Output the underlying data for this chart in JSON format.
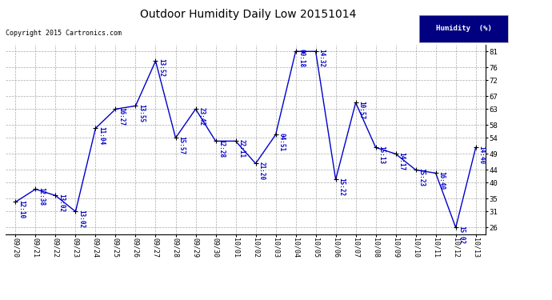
{
  "title": "Outdoor Humidity Daily Low 20151014",
  "copyright": "Copyright 2015 Cartronics.com",
  "legend_label": "Humidity  (%)",
  "dates": [
    "09/20",
    "09/21",
    "09/22",
    "09/23",
    "09/24",
    "09/25",
    "09/26",
    "09/27",
    "09/28",
    "09/29",
    "09/30",
    "10/01",
    "10/02",
    "10/03",
    "10/04",
    "10/05",
    "10/06",
    "10/07",
    "10/08",
    "10/09",
    "10/10",
    "10/11",
    "10/12",
    "10/13"
  ],
  "values": [
    34,
    38,
    36,
    31,
    57,
    63,
    64,
    78,
    54,
    63,
    53,
    53,
    46,
    55,
    81,
    81,
    41,
    65,
    51,
    49,
    44,
    43,
    26,
    51
  ],
  "labels": [
    "12:10",
    "12:38",
    "13:02",
    "13:02",
    "11:04",
    "16:27",
    "13:55",
    "13:52",
    "15:57",
    "23:42",
    "12:28",
    "22:11",
    "21:20",
    "04:51",
    "00:18",
    "14:32",
    "15:22",
    "10:57",
    "15:13",
    "14:17",
    "15:23",
    "16:40",
    "15:02",
    "14:40"
  ],
  "line_color": "#0000cc",
  "marker_color": "#000000",
  "bg_color": "#ffffff",
  "grid_color": "#aaaaaa",
  "text_color": "#0000cc",
  "title_color": "#000000",
  "copyright_color": "#000000",
  "ylim_min": 24,
  "ylim_max": 83,
  "yticks": [
    26,
    31,
    35,
    40,
    44,
    49,
    54,
    58,
    63,
    67,
    72,
    76,
    81
  ],
  "legend_bg": "#000080",
  "legend_text_color": "#ffffff"
}
